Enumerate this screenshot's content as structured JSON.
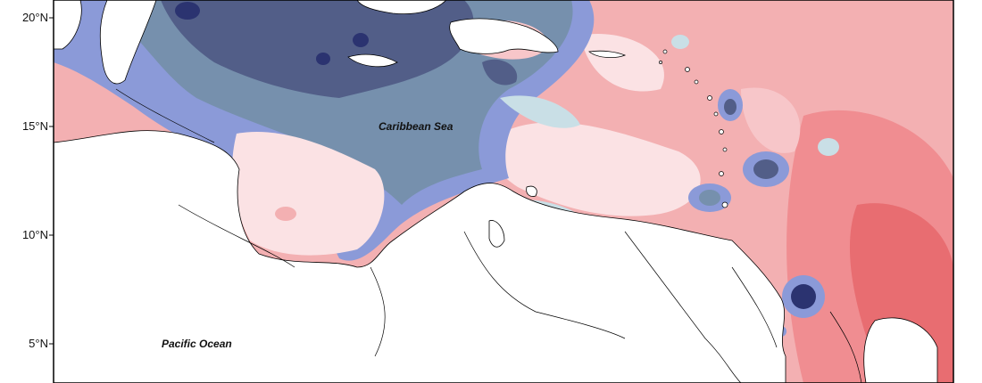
{
  "map": {
    "lat_ticks": [
      {
        "label": "20°N",
        "lat": 20
      },
      {
        "label": "15°N",
        "lat": 15
      },
      {
        "label": "10°N",
        "lat": 10
      },
      {
        "label": "5°N",
        "lat": 5
      }
    ],
    "place_labels": {
      "caribbean": "Caribbean Sea",
      "pacific": "Pacific Ocean"
    },
    "colors": {
      "deep_blue": "#2b3370",
      "dark_slate": "#525e88",
      "slate_blue": "#7690ad",
      "periwinkle": "#8b9ad8",
      "light_blue": "#c9dfe6",
      "pale_pink": "#fbe2e4",
      "light_pink": "#f7c6c9",
      "salmon": "#f3b0b2",
      "coral": "#f08d91",
      "red": "#e86d71",
      "land": "#ffffff",
      "border": "#000000"
    }
  }
}
